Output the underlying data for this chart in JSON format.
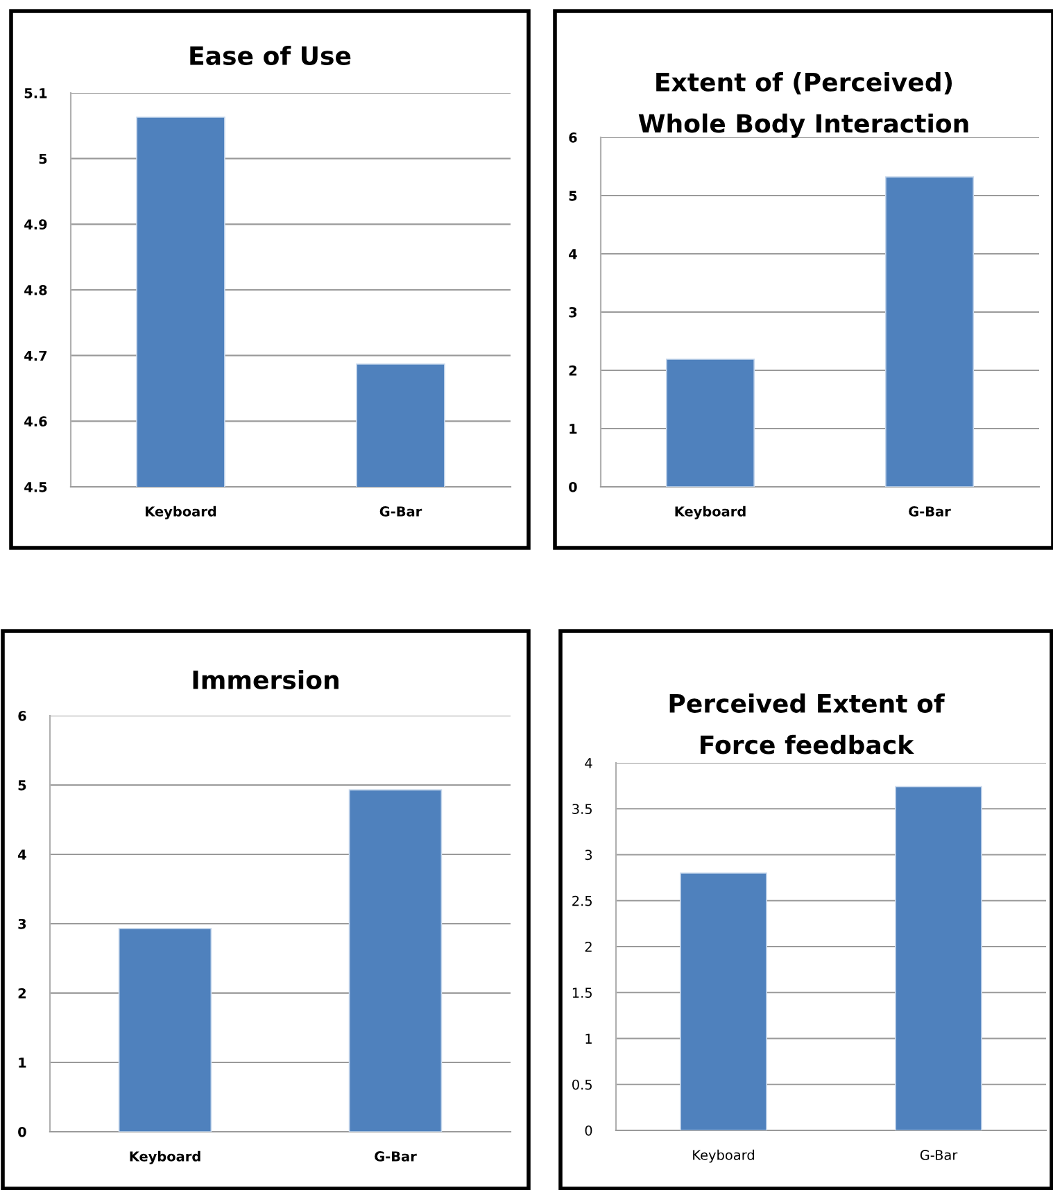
{
  "chart_data": [
    {
      "type": "bar",
      "title": "Ease of Use",
      "categories": [
        "Keyboard",
        "G-Bar"
      ],
      "values": [
        5.063,
        4.687
      ],
      "color": "#4f81bd",
      "ylim": [
        4.5,
        5.1
      ],
      "yticks": [
        4.5,
        4.6,
        4.7,
        4.8,
        4.9,
        5,
        5.1
      ],
      "grid": "y",
      "legend": false
    },
    {
      "type": "bar",
      "title": "Extent of (Perceived)\nWhole Body Interaction",
      "categories": [
        "Keyboard",
        "G-Bar"
      ],
      "values": [
        2.19,
        5.32
      ],
      "color": "#4f81bd",
      "ylim": [
        0,
        6
      ],
      "yticks": [
        0,
        1,
        2,
        3,
        4,
        5,
        6
      ],
      "grid": "y",
      "legend": false
    },
    {
      "type": "bar",
      "title": "Immersion",
      "categories": [
        "Keyboard",
        "G-Bar"
      ],
      "values": [
        2.93,
        4.93
      ],
      "color": "#4f81bd",
      "ylim": [
        0,
        6
      ],
      "yticks": [
        0,
        1,
        2,
        3,
        4,
        5,
        6
      ],
      "grid": "y",
      "legend": false
    },
    {
      "type": "bar",
      "title": "Perceived Extent of\nForce feedback",
      "categories": [
        "Keyboard",
        "G-Bar"
      ],
      "values": [
        2.8,
        3.74
      ],
      "color": "#4f81bd",
      "ylim": [
        0,
        4
      ],
      "yticks": [
        0,
        0.5,
        1,
        1.5,
        2,
        2.5,
        3,
        3.5,
        4
      ],
      "grid": "y",
      "legend": false
    }
  ]
}
